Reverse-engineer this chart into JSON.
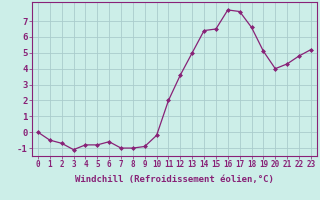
{
  "x": [
    0,
    1,
    2,
    3,
    4,
    5,
    6,
    7,
    8,
    9,
    10,
    11,
    12,
    13,
    14,
    15,
    16,
    17,
    18,
    19,
    20,
    21,
    22,
    23
  ],
  "y": [
    0,
    -0.5,
    -0.7,
    -1.1,
    -0.8,
    -0.8,
    -0.6,
    -1.0,
    -1.0,
    -0.9,
    -0.2,
    2.0,
    3.6,
    5.0,
    6.4,
    6.5,
    7.7,
    7.6,
    6.6,
    5.1,
    4.0,
    4.3,
    4.8,
    5.2
  ],
  "line_color": "#882277",
  "marker": "D",
  "marker_size": 2,
  "bg_color": "#cceee8",
  "grid_color": "#aacccc",
  "xlabel": "Windchill (Refroidissement éolien,°C)",
  "xlim": [
    -0.5,
    23.5
  ],
  "ylim": [
    -1.5,
    8.2
  ],
  "yticks": [
    -1,
    0,
    1,
    2,
    3,
    4,
    5,
    6,
    7
  ],
  "xtick_fontsize": 5.5,
  "ytick_fontsize": 6.5,
  "xlabel_fontsize": 6.5,
  "tick_color": "#882277",
  "spine_color": "#882277"
}
